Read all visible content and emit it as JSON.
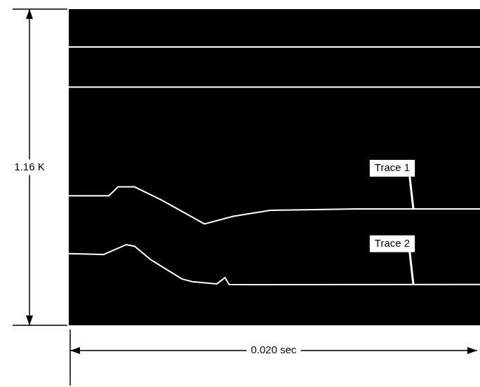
{
  "chart_data": {
    "type": "line",
    "x_label": "0.020 sec",
    "y_label": "1.16 K",
    "xlim": [
      0,
      0.02
    ],
    "ylim": [
      0,
      1.16
    ],
    "tick_labels": false,
    "grid": false,
    "series": [
      {
        "name": "Trace 1",
        "color": "#ffffff",
        "x": [
          0,
          0.00195,
          0.0024,
          0.0032,
          0.0045,
          0.0066,
          0.008,
          0.0098,
          0.014,
          0.02
        ],
        "values": [
          0.475,
          0.475,
          0.508,
          0.508,
          0.46,
          0.372,
          0.4,
          0.422,
          0.427,
          0.427
        ]
      },
      {
        "name": "Trace 2",
        "color": "#ffffff",
        "x": [
          0,
          0.0017,
          0.0028,
          0.0032,
          0.004,
          0.0055,
          0.006,
          0.0072,
          0.0076,
          0.0078,
          0.009,
          0.02
        ],
        "values": [
          0.263,
          0.26,
          0.296,
          0.29,
          0.24,
          0.17,
          0.16,
          0.152,
          0.175,
          0.15,
          0.149,
          0.15
        ]
      },
      {
        "color": "#ffffff",
        "x": [
          0,
          0.02
        ],
        "values": [
          1.021,
          1.021
        ]
      },
      {
        "color": "#ffffff",
        "x": [
          0,
          0.02
        ],
        "values": [
          0.874,
          0.874
        ]
      }
    ]
  }
}
